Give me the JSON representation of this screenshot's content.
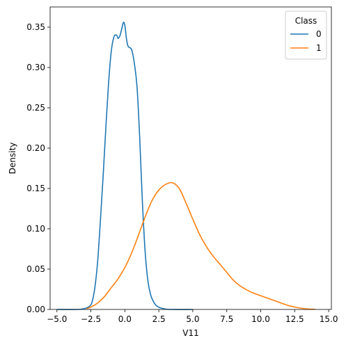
{
  "chart_data": {
    "type": "line",
    "title": "",
    "xlabel": "V11",
    "ylabel": "Density",
    "xlim": [
      -5.5,
      15.2
    ],
    "ylim": [
      0,
      0.375
    ],
    "xticks": [
      -5.0,
      -2.5,
      0.0,
      2.5,
      5.0,
      7.5,
      10.0,
      12.5,
      15.0
    ],
    "xtick_labels": [
      "−5.0",
      "−2.5",
      "0.0",
      "2.5",
      "5.0",
      "7.5",
      "10.0",
      "12.5",
      "15.0"
    ],
    "yticks": [
      0.0,
      0.05,
      0.1,
      0.15,
      0.2,
      0.25,
      0.3,
      0.35
    ],
    "ytick_labels": [
      "0.00",
      "0.05",
      "0.10",
      "0.15",
      "0.20",
      "0.25",
      "0.30",
      "0.35"
    ],
    "grid": false,
    "legend": {
      "title": "Class",
      "position": "top-right"
    },
    "series": [
      {
        "name": "0",
        "color": "#1f77b4",
        "x": [
          -5.0,
          -3.5,
          -3.0,
          -2.6,
          -2.4,
          -2.2,
          -2.0,
          -1.8,
          -1.6,
          -1.4,
          -1.2,
          -1.0,
          -0.8,
          -0.6,
          -0.5,
          -0.35,
          -0.2,
          -0.1,
          0.0,
          0.1,
          0.2,
          0.3,
          0.5,
          0.7,
          0.9,
          1.1,
          1.3,
          1.5,
          1.7,
          1.9,
          2.1,
          2.3,
          2.6,
          3.0,
          3.5,
          5.0
        ],
        "y": [
          0.0,
          0.0,
          0.001,
          0.004,
          0.01,
          0.028,
          0.06,
          0.11,
          0.165,
          0.225,
          0.28,
          0.32,
          0.338,
          0.34,
          0.336,
          0.34,
          0.35,
          0.356,
          0.352,
          0.338,
          0.328,
          0.325,
          0.322,
          0.305,
          0.275,
          0.21,
          0.13,
          0.07,
          0.035,
          0.018,
          0.01,
          0.005,
          0.002,
          0.0005,
          0.0,
          0.0
        ]
      },
      {
        "name": "1",
        "color": "#ff7f0e",
        "x": [
          -2.8,
          -2.5,
          -2.0,
          -1.5,
          -1.0,
          -0.5,
          0.0,
          0.5,
          1.0,
          1.5,
          2.0,
          2.5,
          3.0,
          3.5,
          4.0,
          4.5,
          5.0,
          5.5,
          6.0,
          6.5,
          7.0,
          7.5,
          8.0,
          8.5,
          9.0,
          9.5,
          10.0,
          10.5,
          11.0,
          11.5,
          12.0,
          12.5,
          13.0,
          13.5,
          14.0
        ],
        "y": [
          0.001,
          0.003,
          0.008,
          0.016,
          0.027,
          0.038,
          0.052,
          0.07,
          0.092,
          0.115,
          0.135,
          0.148,
          0.155,
          0.157,
          0.15,
          0.132,
          0.112,
          0.093,
          0.078,
          0.066,
          0.056,
          0.046,
          0.036,
          0.029,
          0.024,
          0.02,
          0.017,
          0.014,
          0.011,
          0.008,
          0.005,
          0.003,
          0.0015,
          0.0005,
          0.0002
        ]
      }
    ]
  }
}
